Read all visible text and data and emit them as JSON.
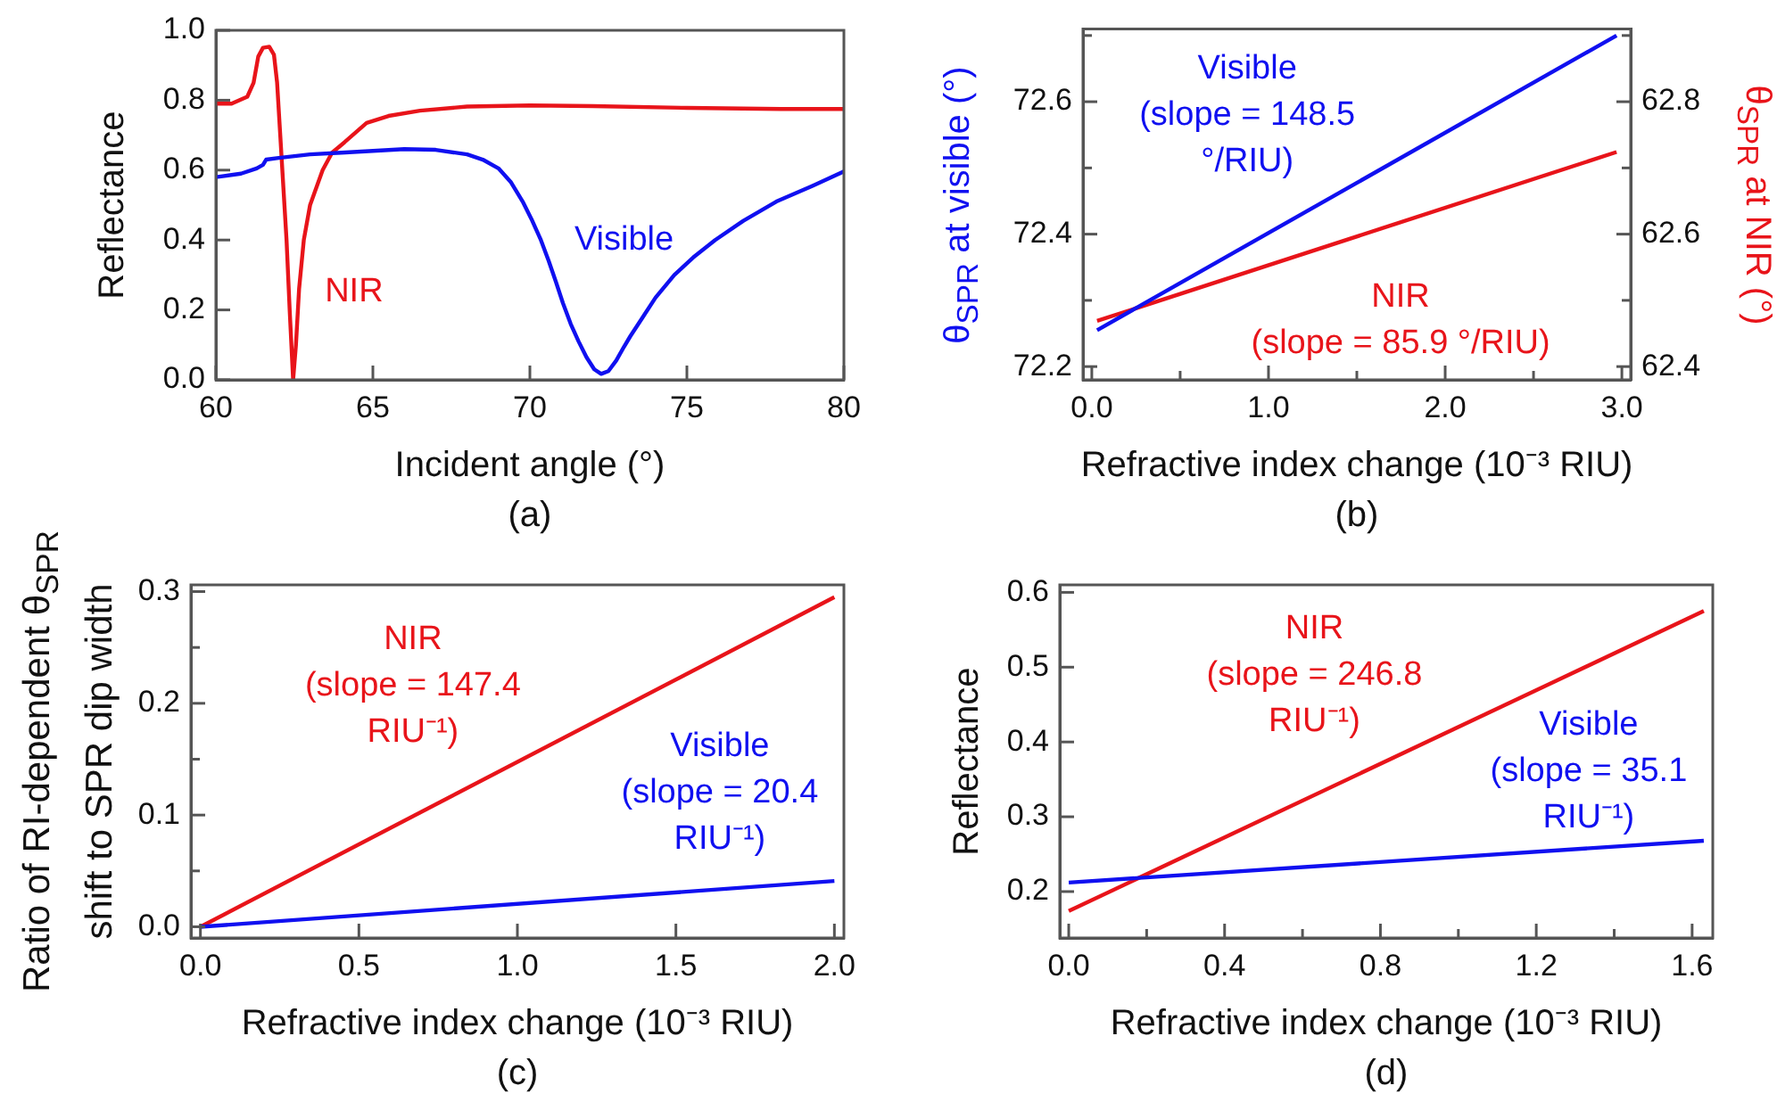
{
  "chart_data": [
    {
      "type": "line",
      "title": "(a)",
      "xlabel": "Incident angle (°)",
      "ylabel": "Reflectance",
      "marker": "none",
      "xlim": [
        60,
        80
      ],
      "xticks": [
        60,
        65,
        70,
        75,
        80
      ],
      "ylim": [
        0,
        1.0
      ],
      "yticks": [
        {
          "value": 0,
          "label": "0.0"
        },
        {
          "value": 0.2,
          "label": "0.2"
        },
        {
          "value": 0.4,
          "label": "0.4"
        },
        {
          "value": 0.6,
          "label": "0.6"
        },
        {
          "value": 0.8,
          "label": "0.8"
        },
        {
          "value": 1.0,
          "label": "1.0"
        }
      ],
      "series": [
        {
          "name": "Visible",
          "color": "#1010f0",
          "x": [
            60,
            60.8,
            61.3,
            61.5,
            61.6,
            62,
            63,
            64,
            65,
            66,
            67,
            68,
            68.5,
            69,
            69.4,
            69.77,
            70.05,
            70.35,
            70.6,
            70.83,
            71.05,
            71.3,
            71.55,
            71.8,
            72.05,
            72.27,
            72.5,
            72.75,
            73.0,
            73.2,
            73.6,
            74.0,
            74.6,
            75.2,
            75.9,
            76.8,
            77.85,
            79,
            80
          ],
          "values": [
            0.58,
            0.59,
            0.605,
            0.615,
            0.63,
            0.635,
            0.645,
            0.65,
            0.655,
            0.66,
            0.658,
            0.645,
            0.63,
            0.605,
            0.565,
            0.51,
            0.46,
            0.4,
            0.34,
            0.28,
            0.22,
            0.16,
            0.11,
            0.065,
            0.03,
            0.017,
            0.025,
            0.055,
            0.095,
            0.125,
            0.18,
            0.235,
            0.3,
            0.35,
            0.4,
            0.455,
            0.51,
            0.555,
            0.596
          ]
        },
        {
          "name": "NIR",
          "color": "#e8141a",
          "x": [
            60,
            60.5,
            61,
            61.2,
            61.35,
            61.5,
            61.7,
            61.85,
            61.95,
            62.05,
            62.15,
            62.25,
            62.35,
            62.46,
            62.55,
            62.65,
            62.8,
            63.0,
            63.4,
            63.7,
            64.1,
            64.8,
            65.5,
            66.5,
            68,
            70,
            72,
            75,
            78,
            80
          ],
          "values": [
            0.79,
            0.79,
            0.81,
            0.85,
            0.925,
            0.95,
            0.953,
            0.93,
            0.85,
            0.7,
            0.55,
            0.4,
            0.2,
            0.0,
            0.1,
            0.26,
            0.4,
            0.5,
            0.6,
            0.65,
            0.68,
            0.735,
            0.755,
            0.77,
            0.782,
            0.785,
            0.783,
            0.778,
            0.775,
            0.775
          ]
        }
      ]
    },
    {
      "type": "line",
      "title": "(b)",
      "xlabel": "Refractive index change (10⁻³ RIU)",
      "ylabel": "θ$_{SPR}$ at visible (°)",
      "y2label": "θ$_{SPR}$ at NIR (°)",
      "marker": "none",
      "annotations": [
        "(slope = 148.5 °/RIU)",
        "(slope = 85.9 °/RIU)"
      ],
      "xlim": [
        -0.05,
        3.05
      ],
      "xticks": [
        {
          "value": 0,
          "label": "0.0"
        },
        {
          "value": 0.5,
          "label": null
        },
        {
          "value": 1,
          "label": "1.0"
        },
        {
          "value": 1.5,
          "label": null
        },
        {
          "value": 2,
          "label": "2.0"
        },
        {
          "value": 2.5,
          "label": null
        },
        {
          "value": 3,
          "label": "3.0"
        }
      ],
      "ylim": [
        72.18,
        72.71
      ],
      "yticks": [
        72.2,
        {
          "value": 72.3,
          "label": null
        },
        72.4,
        {
          "value": 72.5,
          "label": null
        },
        72.6,
        {
          "value": 72.7,
          "label": null
        }
      ],
      "y2lim": [
        62.38,
        62.91
      ],
      "y2ticks": [
        62.4,
        {
          "value": 62.5,
          "label": null
        },
        62.6,
        {
          "value": 62.7,
          "label": null
        },
        62.8,
        {
          "value": 62.9,
          "label": null
        }
      ],
      "series": [
        {
          "name": "Visible",
          "color": "#1010f0",
          "x": [
            0.03,
            2.97
          ],
          "values": [
            72.255,
            72.7
          ]
        },
        {
          "name": "NIR",
          "color": "#e8141a",
          "axis": "y2",
          "x": [
            0.03,
            2.97
          ],
          "values": [
            62.469,
            62.724
          ]
        }
      ]
    },
    {
      "type": "line",
      "title": "(c)",
      "xlabel": "Refractive index change (10⁻³ RIU)",
      "ylabel": "Ratio of RI-dependent θ$_{SPR}$ shift to SPR dip width",
      "marker": "none",
      "annotations": [
        "(slope = 20.4 RIU⁻¹)",
        "(slope = 147.4 RIU⁻¹)"
      ],
      "xlim": [
        -0.03,
        2.03
      ],
      "xticks": [
        {
          "value": 0,
          "label": "0.0"
        },
        0.5,
        {
          "value": 1,
          "label": "1.0"
        },
        1.5,
        {
          "value": 2,
          "label": "2.0"
        }
      ],
      "ylim": [
        -0.01,
        0.306
      ],
      "yticks": [
        {
          "value": 0,
          "label": "0.0"
        },
        {
          "value": 0.05,
          "label": null
        },
        0.1,
        {
          "value": 0.15,
          "label": null
        },
        0.2,
        {
          "value": 0.25,
          "label": null
        },
        0.3
      ],
      "series": [
        {
          "name": "Visible",
          "color": "#1010f0",
          "x": [
            0,
            2.0
          ],
          "values": [
            0,
            0.041
          ]
        },
        {
          "name": "NIR",
          "color": "#e8141a",
          "x": [
            0,
            2.0
          ],
          "values": [
            0,
            0.295
          ]
        }
      ]
    },
    {
      "type": "line",
      "title": "(d)",
      "xlabel": "Refractive index change (10⁻³ RIU)",
      "ylabel": "Reflectance",
      "marker": "none",
      "annotations": [
        "(slope = 35.1 RIU⁻¹)",
        "(slope = 246.8 RIU⁻¹)"
      ],
      "xlim": [
        -0.023,
        1.653
      ],
      "xticks": [
        {
          "value": 0,
          "label": "0.0"
        },
        {
          "value": 0.2,
          "label": null
        },
        0.4,
        {
          "value": 0.6,
          "label": null
        },
        0.8,
        {
          "value": 1.0,
          "label": null
        },
        1.2,
        {
          "value": 1.4,
          "label": null
        },
        1.6
      ],
      "ylim": [
        0.138,
        0.61
      ],
      "yticks": [
        0.2,
        0.3,
        0.4,
        0.5,
        0.6
      ],
      "series": [
        {
          "name": "Visible",
          "color": "#1010f0",
          "x": [
            0.0,
            1.63
          ],
          "values": [
            0.212,
            0.268
          ]
        },
        {
          "name": "NIR",
          "color": "#e8141a",
          "x": [
            0.0,
            1.63
          ],
          "values": [
            0.174,
            0.575
          ]
        }
      ]
    }
  ]
}
